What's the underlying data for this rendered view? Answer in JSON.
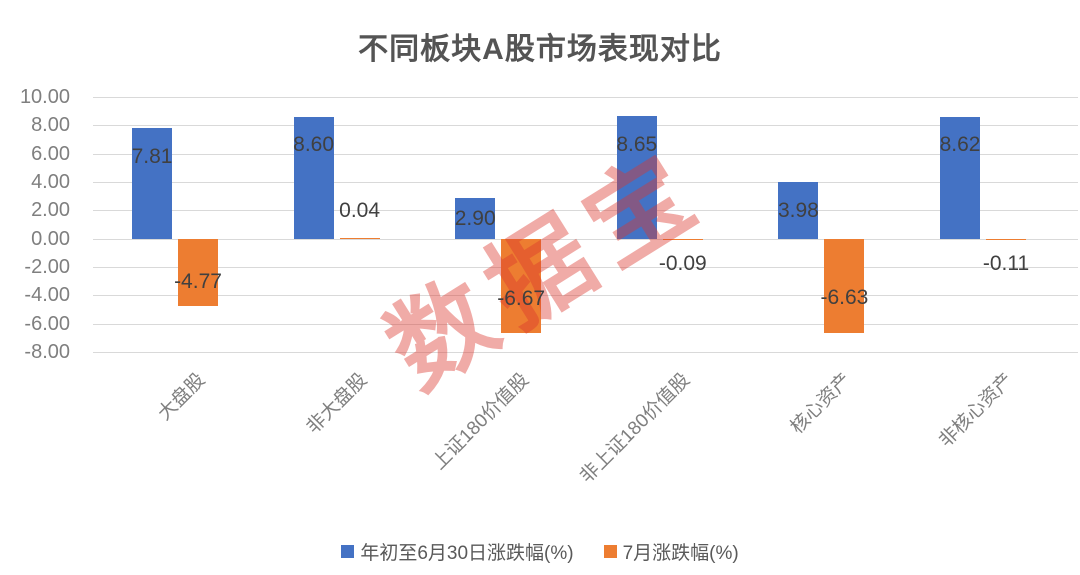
{
  "title": "不同板块A股市场表现对比",
  "watermark": "数据宝",
  "chart_data": {
    "type": "bar",
    "title": "不同板块A股市场表现对比",
    "categories": [
      "大盘股",
      "非大盘股",
      "上证180价值股",
      "非上证180价值股",
      "核心资产",
      "非核心资产"
    ],
    "series": [
      {
        "name": "年初至6月30日涨跌幅(%)",
        "color": "#4472C4",
        "values": [
          7.81,
          8.6,
          2.9,
          8.65,
          3.98,
          8.62
        ],
        "labels": [
          "7.81",
          "8.60",
          "2.90",
          "8.65",
          "3.98",
          "8.62"
        ]
      },
      {
        "name": "7月涨跌幅(%)",
        "color": "#ED7D31",
        "values": [
          -4.77,
          0.04,
          -6.67,
          -0.09,
          -6.63,
          -0.11
        ],
        "labels": [
          "-4.77",
          "0.04",
          "-6.67",
          "-0.09",
          "-6.63",
          "-0.11"
        ]
      }
    ],
    "y_axis": {
      "min": -8,
      "max": 10,
      "step": 2,
      "tick_labels": [
        "10.00",
        "8.00",
        "6.00",
        "4.00",
        "2.00",
        "0.00",
        "-2.00",
        "-4.00",
        "-6.00",
        "-8.00"
      ]
    },
    "xlabel": "",
    "ylabel": "",
    "grid": true,
    "legend_position": "bottom",
    "legend": [
      {
        "label": "年初至6月30日涨跌幅(%)",
        "color": "#4472C4"
      },
      {
        "label": "7月涨跌幅(%)",
        "color": "#ED7D31"
      }
    ]
  },
  "colors": {
    "series_blue": "#4472C4",
    "series_orange": "#ED7D31",
    "gridline": "#d9d9d9",
    "axis_text": "#7f7f7f",
    "value_label_text": "#404040",
    "title_text": "#545454",
    "watermark_red": "rgba(220,55,45,0.42)"
  }
}
